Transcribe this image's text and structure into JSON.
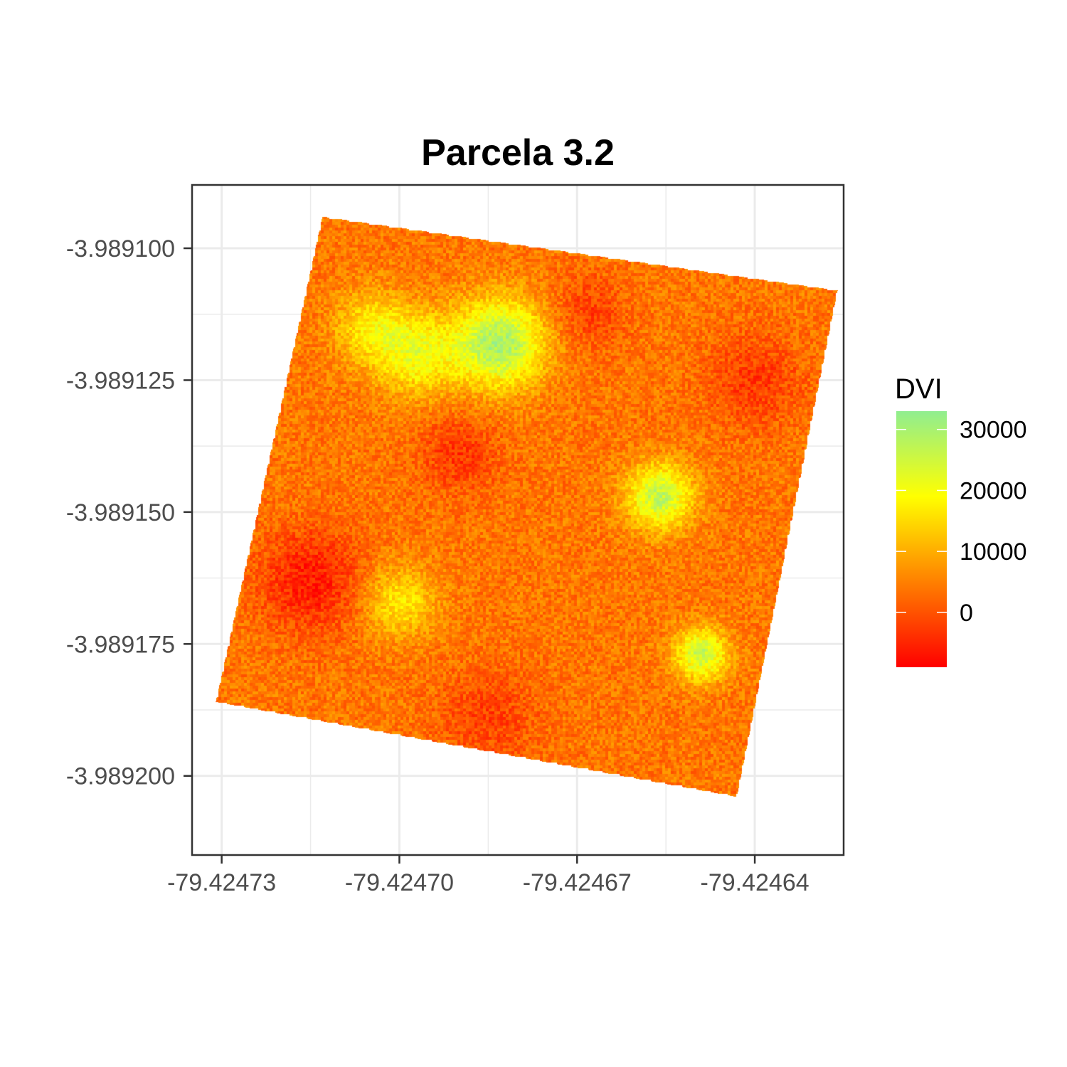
{
  "chart_data": {
    "type": "heatmap",
    "title": "Parcela 3.2",
    "xlabel": "",
    "ylabel": "",
    "xlim": [
      -79.424735,
      -79.424625
    ],
    "ylim": [
      -3.989215,
      -3.989088
    ],
    "x_ticks": [
      -79.42473,
      -79.4247,
      -79.42467,
      -79.42464
    ],
    "x_tick_labels": [
      "-79.42473",
      "-79.42470",
      "-79.42467",
      "-79.42464"
    ],
    "y_ticks": [
      -3.9891,
      -3.989125,
      -3.98915,
      -3.989175,
      -3.9892
    ],
    "y_tick_labels": [
      "-3.989100",
      "-3.989125",
      "-3.989150",
      "-3.989175",
      "-3.989200"
    ],
    "grid": true,
    "raster_corners": [
      {
        "x": -79.424713,
        "y": -3.989094
      },
      {
        "x": -79.424626,
        "y": -3.989108
      },
      {
        "x": -79.424643,
        "y": -3.989204
      },
      {
        "x": -79.424731,
        "y": -3.989186
      }
    ],
    "hotspots": [
      {
        "x": -79.424683,
        "y": -3.989118,
        "r": 7.5e-06,
        "value": 30000
      },
      {
        "x": -79.424697,
        "y": -3.98912,
        "r": 7e-06,
        "value": 20000
      },
      {
        "x": -79.424705,
        "y": -3.989115,
        "r": 6e-06,
        "value": 16000
      },
      {
        "x": -79.424656,
        "y": -3.989147,
        "r": 5.5e-06,
        "value": 27000
      },
      {
        "x": -79.4247,
        "y": -3.989167,
        "r": 6e-06,
        "value": 17000
      },
      {
        "x": -79.424649,
        "y": -3.989177,
        "r": 4.5e-06,
        "value": 26000
      }
    ],
    "coldspots": [
      {
        "x": -79.424715,
        "y": -3.989163,
        "r": 8.5e-06,
        "value": -6000
      },
      {
        "x": -79.42469,
        "y": -3.989139,
        "r": 6.5e-06,
        "value": -3000
      },
      {
        "x": -79.42464,
        "y": -3.989125,
        "r": 7.5e-06,
        "value": -3000
      },
      {
        "x": -79.424668,
        "y": -3.989112,
        "r": 6e-06,
        "value": -2000
      },
      {
        "x": -79.424685,
        "y": -3.989189,
        "r": 8e-06,
        "value": -2000
      }
    ],
    "background_value": 4000,
    "legend": {
      "title": "DVI",
      "placement": "right",
      "range": [
        -9000,
        33000
      ],
      "ticks": [
        30000,
        20000,
        10000,
        0
      ],
      "tick_labels": [
        "30000",
        "20000",
        "10000",
        "0"
      ],
      "colors": [
        "#ff0000",
        "#ff8000",
        "#ffff00",
        "#90ee90"
      ]
    }
  }
}
